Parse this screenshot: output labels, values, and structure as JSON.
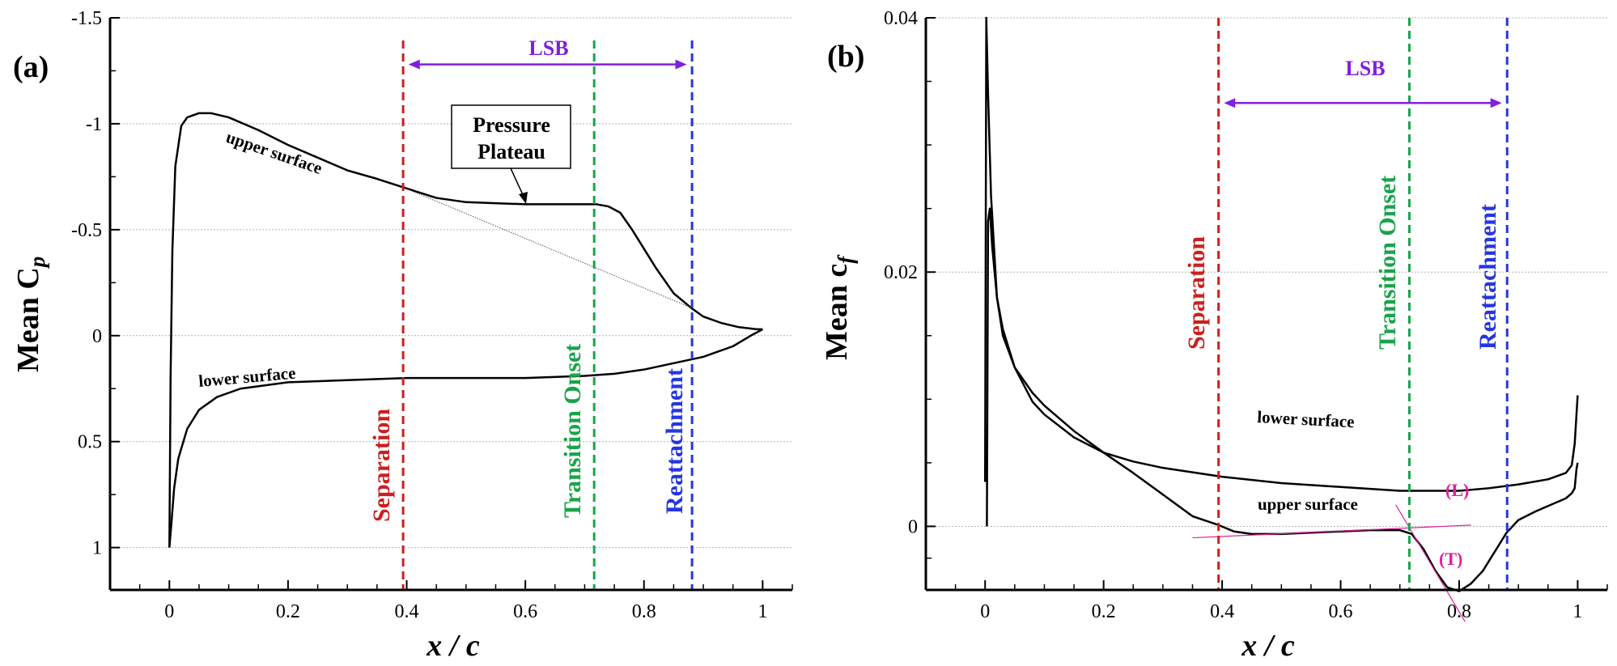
{
  "colors": {
    "separation": "#cc1f1f",
    "transition": "#1aa34a",
    "reattachment": "#2536e0",
    "lsb": "#7f1fe0",
    "tangent": "#e0209a",
    "curve": "#000000",
    "grid": "#b0b0b0"
  },
  "chart_data": [
    {
      "type": "line",
      "panel_label": "(a)",
      "ylabel_main": "Mean  C",
      "ylabel_sub": "p",
      "xlabel": "x / c",
      "xlim": [
        -0.1,
        1.05
      ],
      "ylim_inverted": [
        1.2,
        -1.5
      ],
      "xticks": [
        0,
        0.2,
        0.4,
        0.6,
        0.8,
        1
      ],
      "xtick_labels": [
        "0",
        "0.2",
        "0.4",
        "0.6",
        "0.8",
        "1"
      ],
      "yticks": [
        1,
        0.5,
        0,
        -0.5,
        -1,
        -1.5
      ],
      "ytick_labels": [
        "1",
        "0.5",
        "0",
        "-0.5",
        "-1",
        "-1.5"
      ],
      "markers": [
        {
          "name": "separation",
          "label": "Separation",
          "x": 0.394,
          "color": "#cc1f1f"
        },
        {
          "name": "transition",
          "label": "Transition Onset",
          "x": 0.716,
          "color": "#1aa34a"
        },
        {
          "name": "reattachment",
          "label": "Reattachment",
          "x": 0.881,
          "color": "#2536e0"
        }
      ],
      "lsb": {
        "label": "LSB",
        "x_start": 0.403,
        "x_end": 0.872,
        "y": -1.28
      },
      "annotation": {
        "line1": "Pressure",
        "line2": "Plateau"
      },
      "series": [
        {
          "name": "upper surface",
          "label": "upper surface",
          "x": [
            0.0,
            0.002,
            0.005,
            0.01,
            0.02,
            0.03,
            0.05,
            0.07,
            0.1,
            0.15,
            0.2,
            0.25,
            0.3,
            0.35,
            0.394,
            0.45,
            0.5,
            0.55,
            0.6,
            0.65,
            0.7,
            0.72,
            0.74,
            0.76,
            0.78,
            0.8,
            0.82,
            0.85,
            0.88,
            0.9,
            0.93,
            0.96,
            0.99,
            1.0
          ],
          "values": [
            1.0,
            0.2,
            -0.4,
            -0.8,
            -0.99,
            -1.03,
            -1.05,
            -1.05,
            -1.03,
            -0.97,
            -0.9,
            -0.84,
            -0.78,
            -0.74,
            -0.7,
            -0.65,
            -0.63,
            -0.625,
            -0.62,
            -0.62,
            -0.62,
            -0.62,
            -0.61,
            -0.58,
            -0.5,
            -0.41,
            -0.32,
            -0.2,
            -0.13,
            -0.09,
            -0.06,
            -0.04,
            -0.03,
            -0.03
          ]
        },
        {
          "name": "lower surface",
          "label": "lower surface",
          "x": [
            0.0,
            0.003,
            0.008,
            0.015,
            0.03,
            0.05,
            0.08,
            0.12,
            0.2,
            0.3,
            0.4,
            0.5,
            0.6,
            0.7,
            0.75,
            0.8,
            0.85,
            0.9,
            0.95,
            0.98,
            1.0
          ],
          "values": [
            1.0,
            0.9,
            0.72,
            0.58,
            0.44,
            0.35,
            0.29,
            0.25,
            0.22,
            0.21,
            0.2,
            0.2,
            0.2,
            0.19,
            0.18,
            0.16,
            0.13,
            0.1,
            0.05,
            0.0,
            -0.03
          ]
        },
        {
          "name": "extrapolated pressure recovery",
          "label": "",
          "x": [
            0.394,
            0.881
          ],
          "values": [
            -0.7,
            -0.13
          ]
        }
      ]
    },
    {
      "type": "line",
      "panel_label": "(b)",
      "ylabel_main": "Mean  c",
      "ylabel_sub": "f",
      "xlabel": "x / c",
      "xlim": [
        -0.1,
        1.05
      ],
      "ylim": [
        -0.005,
        0.04
      ],
      "xticks": [
        0,
        0.2,
        0.4,
        0.6,
        0.8,
        1
      ],
      "xtick_labels": [
        "0",
        "0.2",
        "0.4",
        "0.6",
        "0.8",
        "1"
      ],
      "yticks": [
        0,
        0.02,
        0.04
      ],
      "ytick_labels": [
        "0",
        "0.02",
        "0.04"
      ],
      "markers": [
        {
          "name": "separation",
          "label": "Separation",
          "x": 0.394,
          "color": "#cc1f1f"
        },
        {
          "name": "transition",
          "label": "Transition Onset",
          "x": 0.716,
          "color": "#1aa34a"
        },
        {
          "name": "reattachment",
          "label": "Reattachment",
          "x": 0.881,
          "color": "#2536e0"
        }
      ],
      "lsb": {
        "label": "LSB",
        "x_start": 0.403,
        "x_end": 0.872,
        "y": 0.0333
      },
      "tangent_labels": [
        "(L)",
        "(T)"
      ],
      "series": [
        {
          "name": "upper surface",
          "label": "upper surface",
          "x": [
            0.0,
            0.002,
            0.005,
            0.01,
            0.02,
            0.03,
            0.05,
            0.08,
            0.1,
            0.15,
            0.2,
            0.25,
            0.3,
            0.35,
            0.394,
            0.42,
            0.45,
            0.5,
            0.55,
            0.6,
            0.65,
            0.7,
            0.72,
            0.74,
            0.76,
            0.78,
            0.8,
            0.82,
            0.84,
            0.86,
            0.88,
            0.9,
            0.93,
            0.96,
            0.98,
            0.99,
            0.995,
            0.998,
            1.0
          ],
          "values": [
            0.0035,
            0.04,
            0.034,
            0.026,
            0.018,
            0.015,
            0.0125,
            0.0105,
            0.0095,
            0.0075,
            0.0058,
            0.0042,
            0.0025,
            0.0008,
            0.0001,
            -0.0004,
            -0.0006,
            -0.0006,
            -0.0005,
            -0.0004,
            -0.0003,
            -0.0003,
            -0.0006,
            -0.0018,
            -0.0035,
            -0.0048,
            -0.0051,
            -0.0045,
            -0.0035,
            -0.002,
            -0.0005,
            0.0005,
            0.0012,
            0.0018,
            0.0022,
            0.0026,
            0.003,
            0.0045,
            0.005
          ]
        },
        {
          "name": "lower surface",
          "label": "lower surface",
          "x": [
            0.003,
            0.005,
            0.008,
            0.012,
            0.02,
            0.03,
            0.05,
            0.08,
            0.1,
            0.15,
            0.2,
            0.25,
            0.3,
            0.4,
            0.5,
            0.6,
            0.7,
            0.8,
            0.85,
            0.9,
            0.95,
            0.98,
            0.99,
            0.995,
            1.0
          ],
          "values": [
            0.0,
            0.024,
            0.025,
            0.022,
            0.018,
            0.0155,
            0.0125,
            0.0098,
            0.0088,
            0.007,
            0.0058,
            0.0051,
            0.0046,
            0.0039,
            0.0034,
            0.0031,
            0.0028,
            0.0028,
            0.003,
            0.0033,
            0.0037,
            0.0042,
            0.0048,
            0.0065,
            0.0103
          ]
        },
        {
          "name": "laminar tangent (L)",
          "label": "",
          "x": [
            0.35,
            0.82
          ],
          "values": [
            -0.0009,
            0.0001
          ]
        },
        {
          "name": "turbulent tangent (T)",
          "label": "",
          "x": [
            0.693,
            0.81
          ],
          "values": [
            0.0017,
            -0.0075
          ]
        }
      ]
    }
  ]
}
